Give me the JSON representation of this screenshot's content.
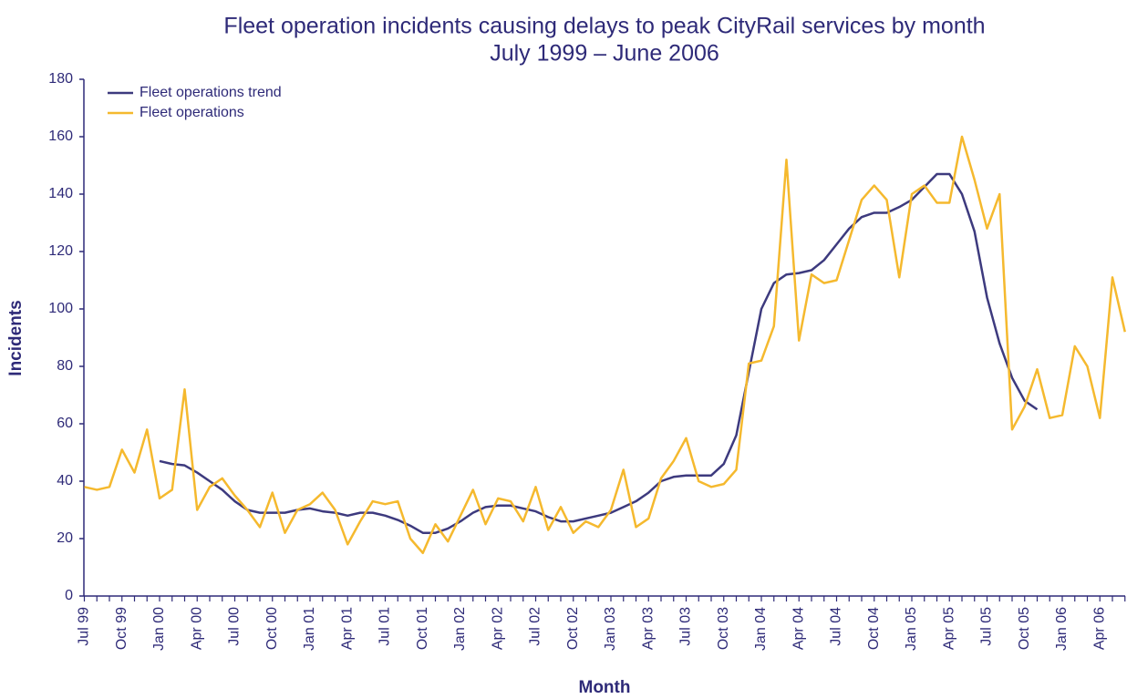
{
  "chart_data": {
    "type": "line",
    "title": "Fleet operation incidents causing delays to peak CityRail services by month",
    "subtitle": "July 1999 – June 2006",
    "y_label": "Incidents",
    "x_label": "Month",
    "categories": [
      "Jul 99",
      null,
      null,
      "Oct 99",
      null,
      null,
      "Jan 00",
      null,
      null,
      "Apr 00",
      null,
      null,
      "Jul 00",
      null,
      null,
      "Oct 00",
      null,
      null,
      "Jan 01",
      null,
      null,
      "Apr 01",
      null,
      null,
      "Jul 01",
      null,
      null,
      "Oct 01",
      null,
      null,
      "Jan 02",
      null,
      null,
      "Apr 02",
      null,
      null,
      "Jul 02",
      null,
      null,
      "Oct 02",
      null,
      null,
      "Jan 03",
      null,
      null,
      "Apr 03",
      null,
      null,
      "Jul 03",
      null,
      null,
      "Oct 03",
      null,
      null,
      "Jan 04",
      null,
      null,
      "Apr 04",
      null,
      null,
      "Jul 04",
      null,
      null,
      "Oct 04",
      null,
      null,
      "Jan 05",
      null,
      null,
      "Apr 05",
      null,
      null,
      "Jul 05",
      null,
      null,
      "Oct 05",
      null,
      null,
      "Jan 06",
      null,
      null,
      "Apr 06",
      null,
      null
    ],
    "series": [
      {
        "name": "Fleet operations trend",
        "color": "#3d3a7e",
        "values": [
          null,
          null,
          null,
          null,
          null,
          null,
          47,
          46,
          45.5,
          43,
          40,
          37,
          33,
          30,
          29,
          29,
          29,
          30,
          30.5,
          29.5,
          29,
          28,
          29,
          29,
          28,
          26.5,
          24.5,
          22,
          22,
          23.5,
          26,
          29,
          31,
          31.5,
          31.5,
          30.5,
          29.5,
          27.5,
          26,
          26,
          27,
          28,
          29,
          31,
          33,
          36,
          40,
          41.5,
          42,
          42,
          42,
          46,
          56,
          78,
          100,
          109,
          112,
          112.5,
          113.5,
          117,
          122.5,
          128,
          132,
          133.5,
          133.5,
          135.5,
          138,
          142.5,
          147,
          147,
          140,
          127,
          104,
          88,
          76,
          68,
          65,
          null,
          null,
          null,
          null,
          null,
          null,
          null
        ]
      },
      {
        "name": "Fleet operations",
        "color": "#f5b92e",
        "values": [
          38,
          37,
          38,
          51,
          43,
          58,
          34,
          37,
          72,
          30,
          38,
          41,
          35,
          30,
          24,
          36,
          22,
          30,
          32,
          36,
          30,
          18,
          26,
          33,
          32,
          33,
          20,
          15,
          25,
          19,
          28,
          37,
          25,
          34,
          33,
          26,
          38,
          23,
          31,
          22,
          26,
          24,
          30,
          44,
          24,
          27,
          41,
          47,
          55,
          40,
          38,
          39,
          44,
          81,
          82,
          94,
          152,
          89,
          112,
          109,
          110,
          124,
          138,
          143,
          138,
          111,
          140,
          143,
          137,
          137,
          160,
          145,
          128,
          140,
          58,
          66,
          79,
          62,
          63,
          87,
          80,
          62,
          111,
          92
        ]
      }
    ],
    "ylim": [
      0,
      180
    ],
    "yticks": [
      0,
      20,
      40,
      60,
      80,
      100,
      120,
      140,
      160,
      180
    ],
    "grid": false,
    "legend": "upper-left"
  }
}
